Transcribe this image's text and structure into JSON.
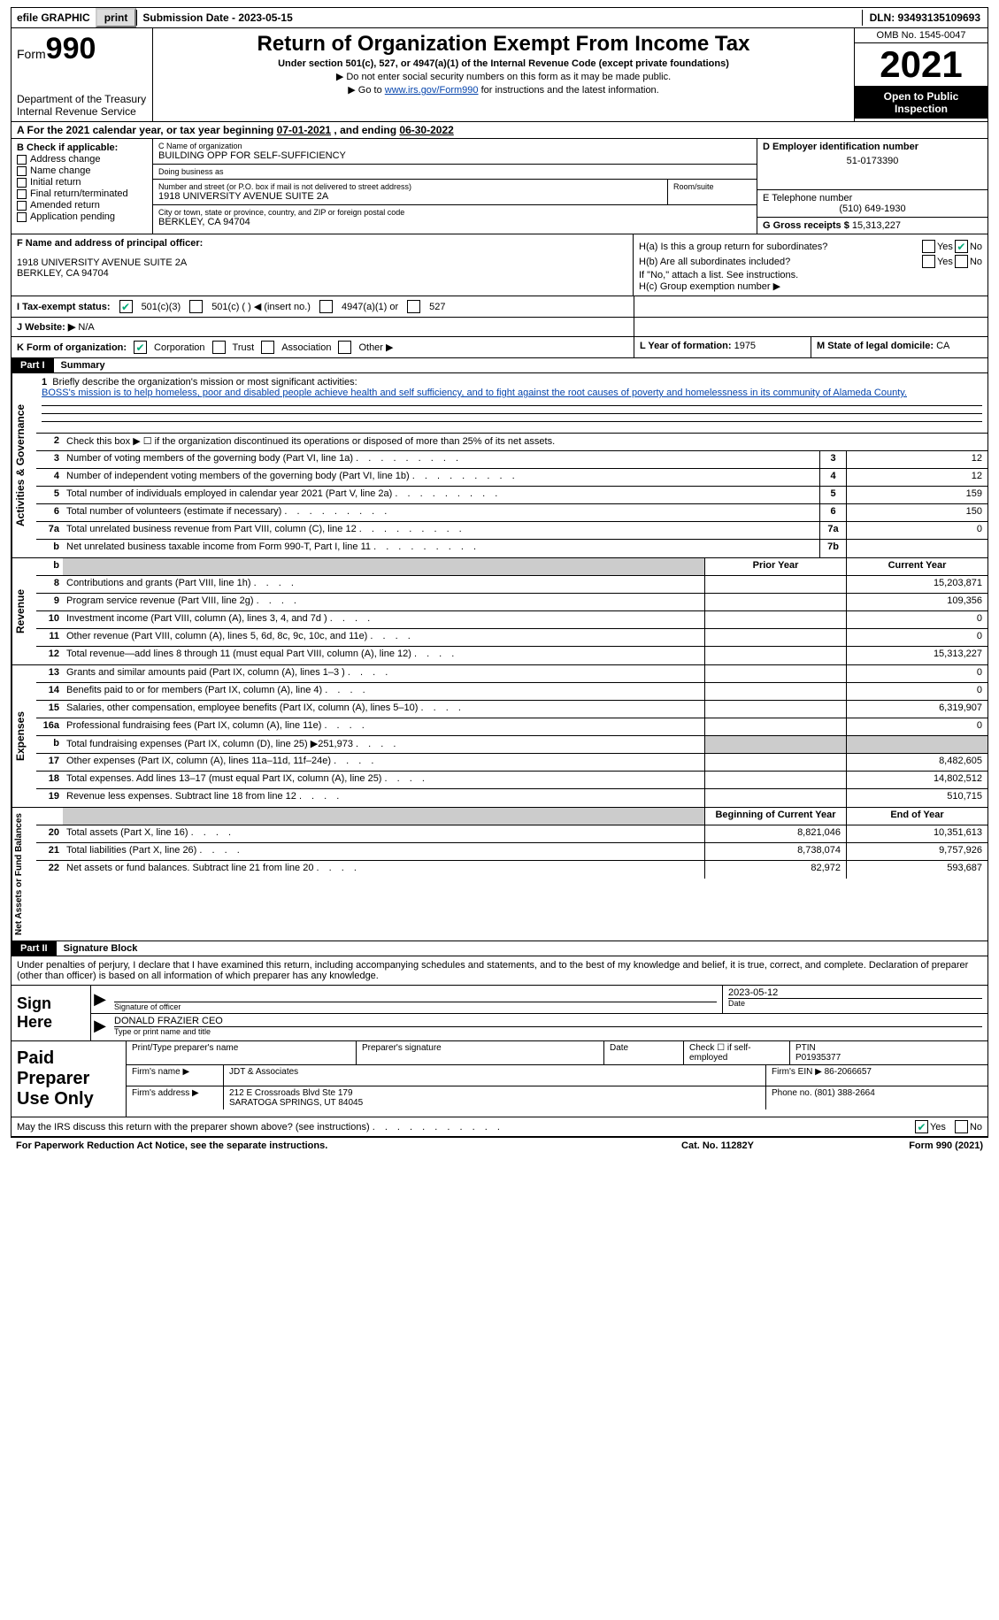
{
  "topbar": {
    "efile": "efile GRAPHIC",
    "print": "print",
    "sub_label": "Submission Date - 2023-05-15",
    "dln": "DLN: 93493135109693"
  },
  "header": {
    "form_word": "Form",
    "form_num": "990",
    "title": "Return of Organization Exempt From Income Tax",
    "subtitle": "Under section 501(c), 527, or 4947(a)(1) of the Internal Revenue Code (except private foundations)",
    "note1": "▶ Do not enter social security numbers on this form as it may be made public.",
    "note2_pre": "▶ Go to ",
    "note2_link": "www.irs.gov/Form990",
    "note2_post": " for instructions and the latest information.",
    "dept": "Department of the Treasury",
    "irs": "Internal Revenue Service",
    "omb": "OMB No. 1545-0047",
    "year": "2021",
    "open": "Open to Public Inspection"
  },
  "rowA": {
    "pre": "A For the 2021 calendar year, or tax year beginning ",
    "begin": "07-01-2021",
    "mid": " , and ending ",
    "end": "06-30-2022"
  },
  "colB": {
    "label": "B Check if applicable:",
    "opts": [
      "Address change",
      "Name change",
      "Initial return",
      "Final return/terminated",
      "Amended return",
      "Application pending"
    ]
  },
  "colC": {
    "name_label": "C Name of organization",
    "name": "BUILDING OPP FOR SELF-SUFFICIENCY",
    "dba_label": "Doing business as",
    "dba": "",
    "addr_label": "Number and street (or P.O. box if mail is not delivered to street address)",
    "room_label": "Room/suite",
    "addr": "1918 UNIVERSITY AVENUE SUITE 2A",
    "city_label": "City or town, state or province, country, and ZIP or foreign postal code",
    "city": "BERKLEY, CA  94704"
  },
  "colD": {
    "ein_label": "D Employer identification number",
    "ein": "51-0173390",
    "phone_label": "E Telephone number",
    "phone": "(510) 649-1930",
    "gross_label": "G Gross receipts $",
    "gross": "15,313,227"
  },
  "rowF": {
    "label": "F  Name and address of principal officer:",
    "name": "",
    "addr1": "1918 UNIVERSITY AVENUE SUITE 2A",
    "addr2": "BERKLEY, CA  94704"
  },
  "rowH": {
    "ha": "H(a)  Is this a group return for subordinates?",
    "hb": "H(b)  Are all subordinates included?",
    "hb_note": "If \"No,\" attach a list. See instructions.",
    "hc": "H(c)  Group exemption number ▶",
    "yes": "Yes",
    "no": "No"
  },
  "rowI": {
    "label": "I  Tax-exempt status:",
    "o1": "501(c)(3)",
    "o2": "501(c) (   ) ◀ (insert no.)",
    "o3": "4947(a)(1) or",
    "o4": "527"
  },
  "rowJ": {
    "label": "J  Website: ▶",
    "val": "N/A"
  },
  "rowK": {
    "label": "K Form of organization:",
    "o1": "Corporation",
    "o2": "Trust",
    "o3": "Association",
    "o4": "Other ▶",
    "l_label": "L Year of formation:",
    "l_val": "1975",
    "m_label": "M State of legal domicile:",
    "m_val": "CA"
  },
  "part1": {
    "num": "Part I",
    "title": "Summary"
  },
  "summary": {
    "side1": "Activities & Governance",
    "side2": "Revenue",
    "side3": "Expenses",
    "side4": "Net Assets or Fund Balances",
    "l1": "Briefly describe the organization's mission or most significant activities:",
    "mission": "BOSS's mission is to help homeless, poor and disabled people achieve health and self sufficiency, and to fight against the root causes of poverty and homelessness in its community of Alameda County.",
    "l2": "Check this box ▶ ☐  if the organization discontinued its operations or disposed of more than 25% of its net assets.",
    "rows_ag": [
      {
        "n": "3",
        "d": "Number of voting members of the governing body (Part VI, line 1a)",
        "box": "3",
        "val": "12"
      },
      {
        "n": "4",
        "d": "Number of independent voting members of the governing body (Part VI, line 1b)",
        "box": "4",
        "val": "12"
      },
      {
        "n": "5",
        "d": "Total number of individuals employed in calendar year 2021 (Part V, line 2a)",
        "box": "5",
        "val": "159"
      },
      {
        "n": "6",
        "d": "Total number of volunteers (estimate if necessary)",
        "box": "6",
        "val": "150"
      },
      {
        "n": "7a",
        "d": "Total unrelated business revenue from Part VIII, column (C), line 12",
        "box": "7a",
        "val": "0"
      },
      {
        "n": "b",
        "d": "Net unrelated business taxable income from Form 990-T, Part I, line 11",
        "box": "7b",
        "val": ""
      }
    ],
    "hdr_prior": "Prior Year",
    "hdr_curr": "Current Year",
    "rows_rev": [
      {
        "n": "8",
        "d": "Contributions and grants (Part VIII, line 1h)",
        "p": "",
        "c": "15,203,871"
      },
      {
        "n": "9",
        "d": "Program service revenue (Part VIII, line 2g)",
        "p": "",
        "c": "109,356"
      },
      {
        "n": "10",
        "d": "Investment income (Part VIII, column (A), lines 3, 4, and 7d )",
        "p": "",
        "c": "0"
      },
      {
        "n": "11",
        "d": "Other revenue (Part VIII, column (A), lines 5, 6d, 8c, 9c, 10c, and 11e)",
        "p": "",
        "c": "0"
      },
      {
        "n": "12",
        "d": "Total revenue—add lines 8 through 11 (must equal Part VIII, column (A), line 12)",
        "p": "",
        "c": "15,313,227"
      }
    ],
    "rows_exp": [
      {
        "n": "13",
        "d": "Grants and similar amounts paid (Part IX, column (A), lines 1–3 )",
        "p": "",
        "c": "0"
      },
      {
        "n": "14",
        "d": "Benefits paid to or for members (Part IX, column (A), line 4)",
        "p": "",
        "c": "0"
      },
      {
        "n": "15",
        "d": "Salaries, other compensation, employee benefits (Part IX, column (A), lines 5–10)",
        "p": "",
        "c": "6,319,907"
      },
      {
        "n": "16a",
        "d": "Professional fundraising fees (Part IX, column (A), line 11e)",
        "p": "",
        "c": "0"
      },
      {
        "n": "b",
        "d": "Total fundraising expenses (Part IX, column (D), line 25) ▶251,973",
        "p": "grey",
        "c": "grey"
      },
      {
        "n": "17",
        "d": "Other expenses (Part IX, column (A), lines 11a–11d, 11f–24e)",
        "p": "",
        "c": "8,482,605"
      },
      {
        "n": "18",
        "d": "Total expenses. Add lines 13–17 (must equal Part IX, column (A), line 25)",
        "p": "",
        "c": "14,802,512"
      },
      {
        "n": "19",
        "d": "Revenue less expenses. Subtract line 18 from line 12",
        "p": "",
        "c": "510,715"
      }
    ],
    "hdr_begin": "Beginning of Current Year",
    "hdr_end": "End of Year",
    "rows_net": [
      {
        "n": "20",
        "d": "Total assets (Part X, line 16)",
        "p": "8,821,046",
        "c": "10,351,613"
      },
      {
        "n": "21",
        "d": "Total liabilities (Part X, line 26)",
        "p": "8,738,074",
        "c": "9,757,926"
      },
      {
        "n": "22",
        "d": "Net assets or fund balances. Subtract line 21 from line 20",
        "p": "82,972",
        "c": "593,687"
      }
    ]
  },
  "part2": {
    "num": "Part II",
    "title": "Signature Block"
  },
  "sig": {
    "intro": "Under penalties of perjury, I declare that I have examined this return, including accompanying schedules and statements, and to the best of my knowledge and belief, it is true, correct, and complete. Declaration of preparer (other than officer) is based on all information of which preparer has any knowledge.",
    "sign_here": "Sign Here",
    "sig_officer": "Signature of officer",
    "date": "2023-05-12",
    "date_label": "Date",
    "name": "DONALD FRAZIER  CEO",
    "name_label": "Type or print name and title"
  },
  "prep": {
    "label": "Paid Preparer Use Only",
    "h_name": "Print/Type preparer's name",
    "h_sig": "Preparer's signature",
    "h_date": "Date",
    "h_check": "Check ☐ if self-employed",
    "h_ptin": "PTIN",
    "ptin": "P01935377",
    "firm_name_l": "Firm's name   ▶",
    "firm_name": "JDT & Associates",
    "firm_ein_l": "Firm's EIN ▶",
    "firm_ein": "86-2066657",
    "firm_addr_l": "Firm's address ▶",
    "firm_addr1": "212 E Crossroads Blvd Ste 179",
    "firm_addr2": "SARATOGA SPRINGS, UT  84045",
    "phone_l": "Phone no.",
    "phone": "(801) 388-2664"
  },
  "bottom": {
    "q": "May the IRS discuss this return with the preparer shown above? (see instructions)",
    "yes": "Yes",
    "no": "No"
  },
  "footer": {
    "l": "For Paperwork Reduction Act Notice, see the separate instructions.",
    "m": "Cat. No. 11282Y",
    "r": "Form 990 (2021)"
  }
}
